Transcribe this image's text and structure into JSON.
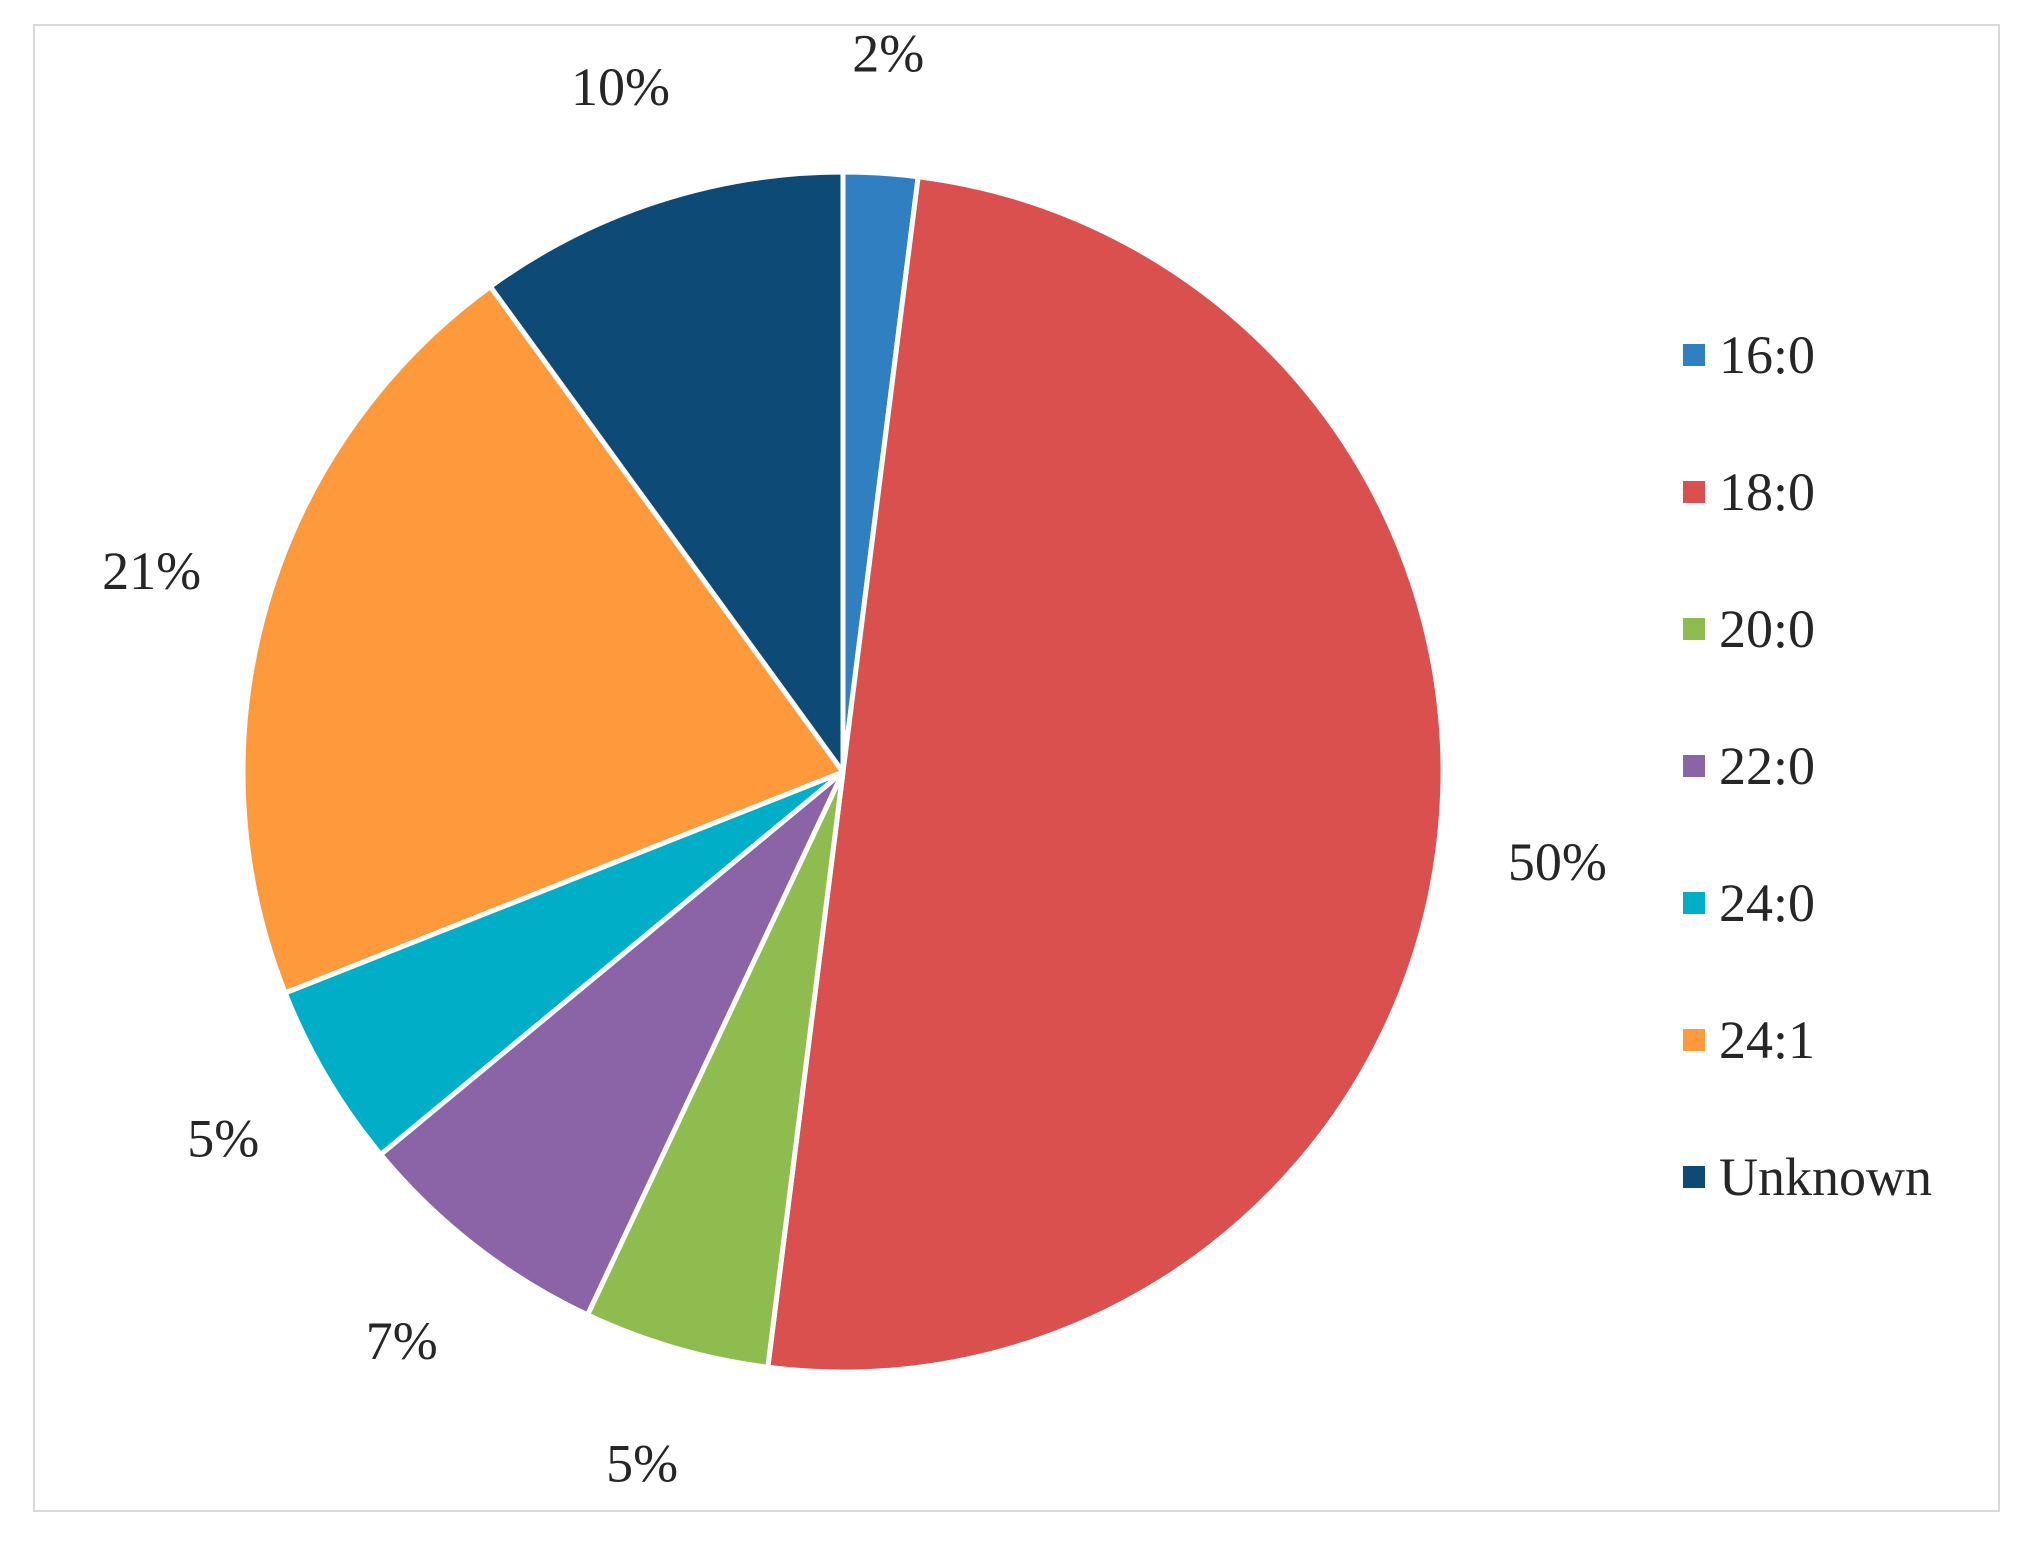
{
  "chart_data": {
    "type": "pie",
    "categories": [
      "16:0",
      "18:0",
      "20:0",
      "22:0",
      "24:0",
      "24:1",
      "Unknown"
    ],
    "values": [
      2,
      50,
      5,
      7,
      5,
      21,
      10
    ],
    "value_labels": [
      "2%",
      "50%",
      "5%",
      "7%",
      "5%",
      "21%",
      "10%"
    ],
    "colors": [
      "#2f7fc1",
      "#d9504f",
      "#8fbc4f",
      "#8a64a6",
      "#00aec7",
      "#ff9a3c",
      "#0d4a75"
    ],
    "legend_placement": "right",
    "title": ""
  }
}
